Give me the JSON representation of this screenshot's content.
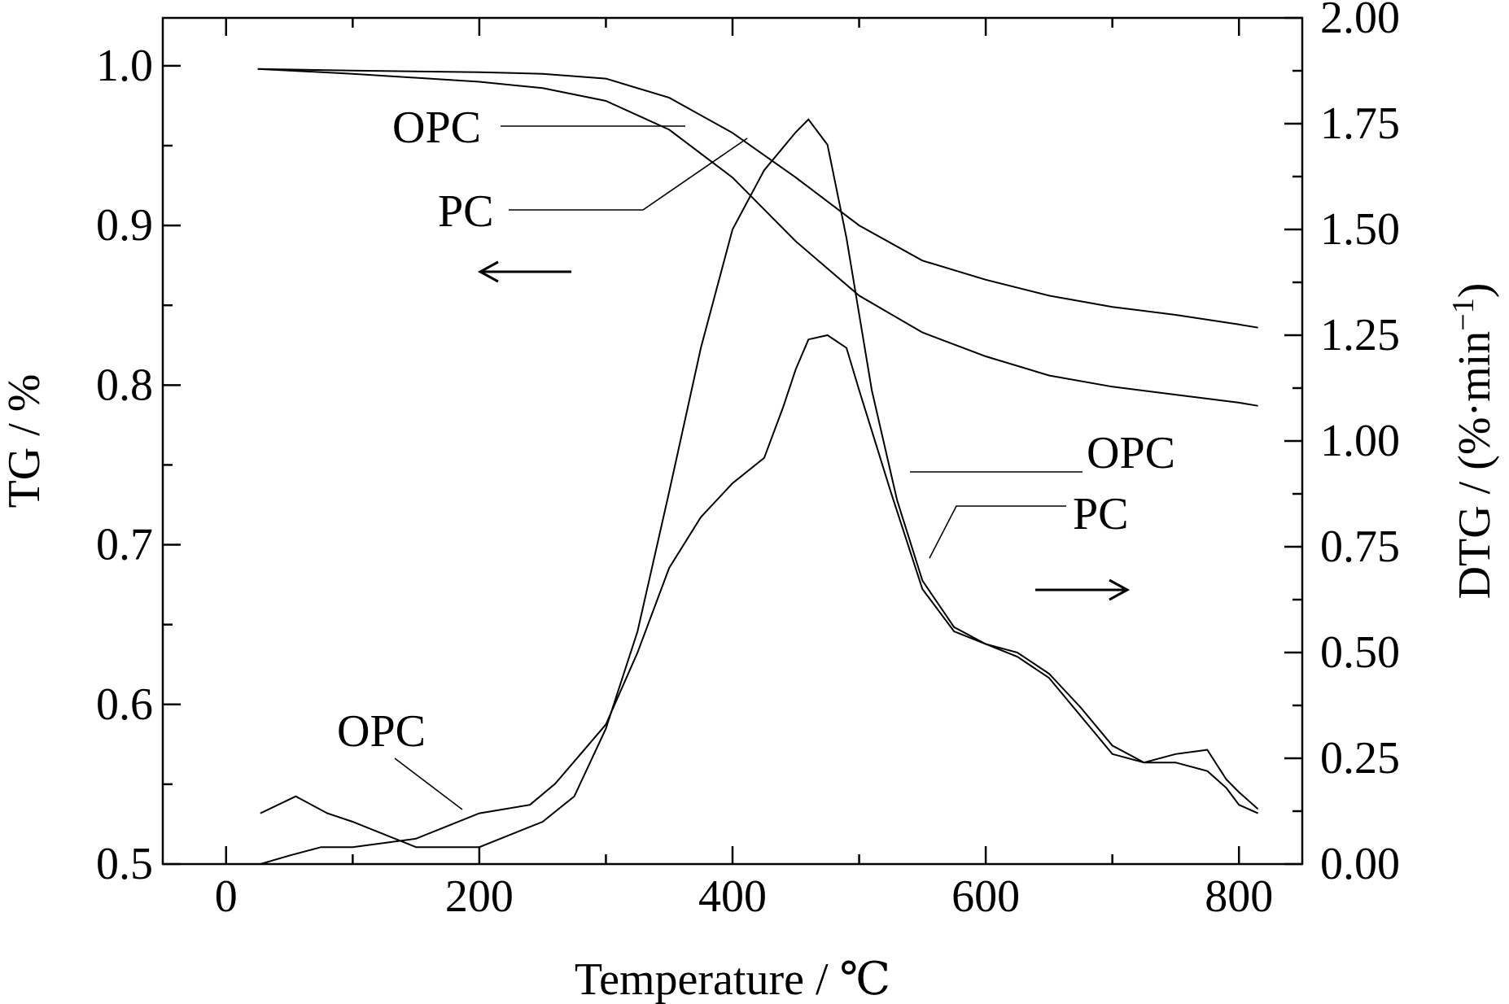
{
  "chart_data": {
    "type": "line",
    "xlabel": "Temperature / ℃",
    "ylabel_left": "TG / %",
    "ylabel_right_main": "DTG / (%·min",
    "ylabel_right_sup": "−1",
    "ylabel_right_close": ")",
    "xlim": [
      -50,
      850
    ],
    "ylim_left": [
      0.5,
      1.03
    ],
    "ylim_right": [
      0.0,
      2.0
    ],
    "x_ticks": [
      0,
      200,
      400,
      600,
      800
    ],
    "x_tick_labels": [
      "0",
      "200",
      "400",
      "600",
      "800"
    ],
    "x_minor_ticks": [
      100,
      300,
      500,
      700
    ],
    "y_left_ticks": [
      0.5,
      0.6,
      0.7,
      0.8,
      0.9,
      1.0
    ],
    "y_left_tick_labels": [
      "0.5",
      "0.6",
      "0.7",
      "0.8",
      "0.9",
      "1.0"
    ],
    "y_left_minor_ticks": [
      0.55,
      0.65,
      0.75,
      0.85,
      0.95
    ],
    "y_right_ticks": [
      0.0,
      0.25,
      0.5,
      0.75,
      1.0,
      1.25,
      1.5,
      1.75,
      2.0
    ],
    "y_right_tick_labels": [
      "0.00",
      "0.25",
      "0.50",
      "0.75",
      "1.00",
      "1.25",
      "1.50",
      "1.75",
      "2.00"
    ],
    "y_right_minor_ticks": [
      0.125,
      0.375,
      0.625,
      0.875,
      1.125,
      1.375,
      1.625,
      1.875
    ],
    "grid": false,
    "series": [
      {
        "key": "tg_opc",
        "axis": "left",
        "x": [
          25,
          100,
          200,
          250,
          300,
          350,
          400,
          450,
          500,
          550,
          600,
          650,
          700,
          750,
          800,
          815
        ],
        "y": [
          0.998,
          0.997,
          0.996,
          0.995,
          0.992,
          0.98,
          0.958,
          0.93,
          0.9,
          0.878,
          0.866,
          0.856,
          0.849,
          0.844,
          0.838,
          0.836
        ]
      },
      {
        "key": "tg_pc",
        "axis": "left",
        "x": [
          25,
          100,
          200,
          250,
          300,
          350,
          400,
          450,
          500,
          550,
          600,
          650,
          700,
          750,
          800,
          815
        ],
        "y": [
          0.998,
          0.995,
          0.99,
          0.986,
          0.978,
          0.96,
          0.93,
          0.89,
          0.856,
          0.833,
          0.818,
          0.806,
          0.799,
          0.794,
          0.789,
          0.787
        ]
      },
      {
        "key": "dtg_opc",
        "axis": "right",
        "x": [
          27,
          55,
          80,
          100,
          150,
          200,
          250,
          275,
          300,
          325,
          350,
          375,
          400,
          425,
          450,
          460,
          475,
          490,
          510,
          530,
          550,
          575,
          600,
          625,
          650,
          675,
          700,
          725,
          750,
          775,
          790,
          800,
          815
        ],
        "y": [
          0.12,
          0.16,
          0.12,
          0.1,
          0.04,
          0.04,
          0.1,
          0.16,
          0.32,
          0.55,
          0.88,
          1.22,
          1.5,
          1.64,
          1.73,
          1.76,
          1.7,
          1.48,
          1.12,
          0.86,
          0.67,
          0.56,
          0.52,
          0.5,
          0.45,
          0.37,
          0.28,
          0.24,
          0.24,
          0.22,
          0.18,
          0.14,
          0.12
        ]
      },
      {
        "key": "dtg_pc",
        "axis": "right",
        "x": [
          27,
          50,
          75,
          100,
          150,
          200,
          240,
          260,
          280,
          300,
          325,
          350,
          375,
          400,
          425,
          440,
          450,
          460,
          475,
          490,
          500,
          525,
          550,
          575,
          600,
          625,
          650,
          675,
          700,
          725,
          750,
          775,
          790,
          800,
          815
        ],
        "y": [
          0.0,
          0.02,
          0.04,
          0.04,
          0.06,
          0.12,
          0.14,
          0.19,
          0.26,
          0.33,
          0.5,
          0.7,
          0.82,
          0.9,
          0.96,
          1.08,
          1.17,
          1.24,
          1.25,
          1.22,
          1.12,
          0.88,
          0.65,
          0.55,
          0.52,
          0.49,
          0.44,
          0.35,
          0.26,
          0.24,
          0.26,
          0.27,
          0.2,
          0.17,
          0.13
        ]
      }
    ],
    "annotations": [
      {
        "key": "tg_opc_label",
        "text": "OPC"
      },
      {
        "key": "tg_pc_label",
        "text": "PC"
      },
      {
        "key": "dtg_opc_label",
        "text": "OPC"
      },
      {
        "key": "dtg_pc_label",
        "text": "PC"
      },
      {
        "key": "dtg_opc_low_label",
        "text": "OPC"
      }
    ]
  }
}
